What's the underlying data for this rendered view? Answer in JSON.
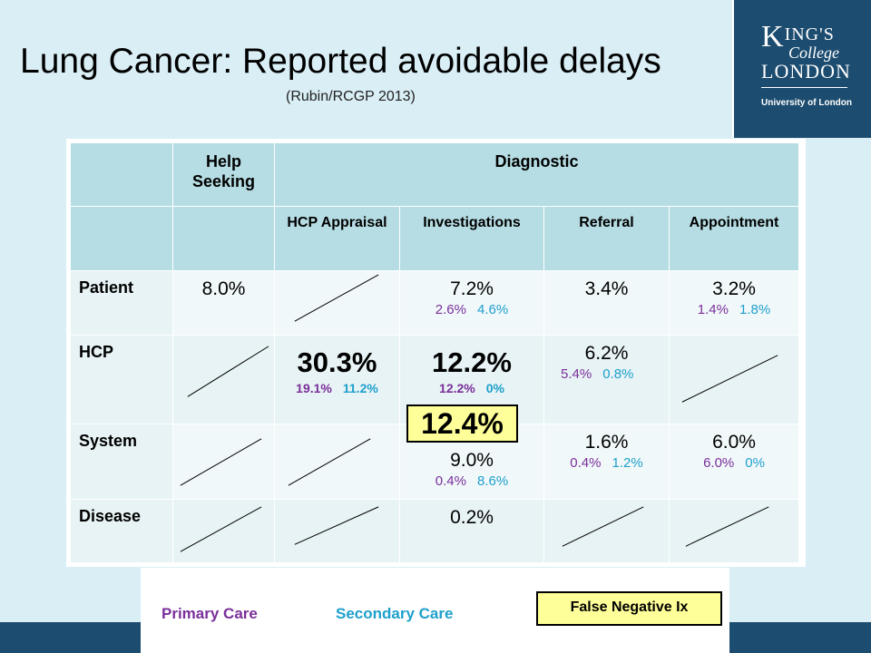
{
  "slide": {
    "title": "Lung Cancer: Reported avoidable delays",
    "subtitle": "(Rubin/RCGP 2013)"
  },
  "logo": {
    "line1_big": "K",
    "line1_small": "ING'S",
    "line2": "College",
    "line3": "LONDON",
    "university": "University of London"
  },
  "table": {
    "header_top": {
      "help_seeking": "Help Seeking",
      "diagnostic": "Diagnostic"
    },
    "header_sub": {
      "hcp_appraisal": "HCP Appraisal",
      "investigations": "Investigations",
      "referral": "Referral",
      "appointment": "Appointment"
    },
    "rows": {
      "patient": {
        "label": "Patient",
        "help_seeking": "8.0%",
        "investigations": {
          "total": "7.2%",
          "primary": "2.6%",
          "secondary": "4.6%"
        },
        "referral": {
          "total": "3.4%"
        },
        "appointment": {
          "total": "3.2%",
          "primary": "1.4%",
          "secondary": "1.8%"
        }
      },
      "hcp": {
        "label": "HCP",
        "hcp_appraisal": {
          "total": "30.3%",
          "primary": "19.1%",
          "secondary": "11.2%"
        },
        "investigations": {
          "total": "12.2%",
          "primary": "12.2%",
          "secondary": "0%"
        },
        "referral": {
          "total": "6.2%",
          "primary": "5.4%",
          "secondary": "0.8%"
        }
      },
      "system": {
        "label": "System",
        "investigations": {
          "total": "9.0%",
          "primary": "0.4%",
          "secondary": "8.6%"
        },
        "referral": {
          "total": "1.6%",
          "primary": "0.4%",
          "secondary": "1.2%"
        },
        "appointment": {
          "total": "6.0%",
          "primary": "6.0%",
          "secondary": "0%"
        }
      },
      "disease": {
        "label": "Disease",
        "investigations": {
          "total": "0.2%"
        }
      }
    },
    "false_negative_value": "12.4%"
  },
  "legend": {
    "primary_care": "Primary Care",
    "secondary_care": "Secondary Care",
    "false_negative": "False Negative Ix"
  },
  "colors": {
    "primary_care": "#7a2f9a",
    "secondary_care": "#1ea0cc",
    "false_negative_fill": "#ffff99",
    "header_fill": "#b6dde4",
    "brand_navy": "#1c4c6f"
  }
}
